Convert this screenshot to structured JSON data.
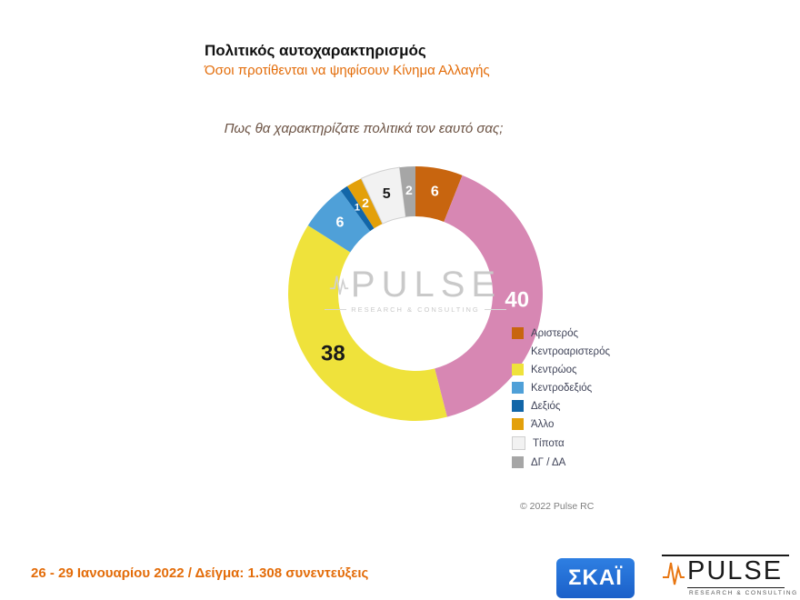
{
  "header": {
    "title": "Πολιτικός αυτοχαρακτηρισμός",
    "subtitle": "Όσοι προτίθενται να ψηφίσουν Κίνημα Αλλαγής"
  },
  "question": "Πως θα χαρακτηρίζατε πολιτικά τον εαυτό σας;",
  "chart_data": {
    "type": "pie",
    "donut": true,
    "start": "top",
    "direction": "clockwise",
    "unit": "%",
    "title": "Πως θα χαρακτηρίζατε πολιτικά τον εαυτό σας;",
    "legend_position": "right",
    "segments": [
      {
        "label": "Αριστερός",
        "value": 6,
        "color": "#C8650F",
        "text_color": "#ffffff"
      },
      {
        "label": "Κεντροαριστερός",
        "value": 40,
        "color": "#D787B3",
        "text_color": "#ffffff"
      },
      {
        "label": "Κεντρώος",
        "value": 38,
        "color": "#EFE23B",
        "text_color": "#1a1a1a"
      },
      {
        "label": "Κεντροδεξιός",
        "value": 6,
        "color": "#4FA0D8",
        "text_color": "#ffffff"
      },
      {
        "label": "Δεξιός",
        "value": 1,
        "color": "#1266A8",
        "text_color": "#ffffff"
      },
      {
        "label": "Άλλο",
        "value": 2,
        "color": "#E3A00A",
        "text_color": "#ffffff"
      },
      {
        "label": "Τίποτα",
        "value": 5,
        "color": "#F2F2F2",
        "text_color": "#1a1a1a",
        "border": "#cfcfcf"
      },
      {
        "label": "ΔΓ / ΔΑ",
        "value": 2,
        "color": "#A6A6A6",
        "text_color": "#ffffff"
      }
    ]
  },
  "watermark": {
    "name": "PULSE",
    "caption": "RESEARCH & CONSULTING"
  },
  "copyright": "© 2022 Pulse RC",
  "footer": {
    "note": "26 - 29  Ιανουαρίου  2022  /  Δείγμα:  1.308 συνεντεύξεις"
  },
  "logos": {
    "skai": "ΣΚΑΪ",
    "pulse": {
      "name": "PULSE",
      "caption": "RESEARCH & CONSULTING"
    }
  },
  "colors": {
    "accent_orange": "#E36C09"
  }
}
